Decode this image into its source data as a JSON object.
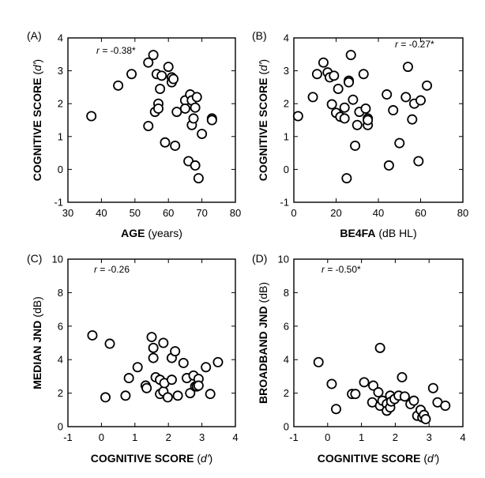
{
  "chart_data": [
    {
      "type": "scatter",
      "panel": "(A)",
      "annotation_r": "r",
      "annotation_value": " = -0.38*",
      "xlabel_bold": "AGE",
      "xlabel_rest": " (years)",
      "ylabel_bold": "COGNITIVE SCORE",
      "ylabel_rest": " (d')",
      "xlim": [
        30,
        80
      ],
      "ylim": [
        -1,
        4
      ],
      "xticks": [
        "30",
        "40",
        "50",
        "60",
        "70",
        "80"
      ],
      "yticks": [
        "-1",
        "0",
        "1",
        "2",
        "3",
        "4"
      ],
      "x": [
        37,
        45,
        49,
        54,
        54,
        55.5,
        56,
        56.5,
        57,
        57,
        57.5,
        58,
        59,
        60,
        61,
        61,
        61.5,
        62,
        62.5,
        65,
        65,
        66,
        66.5,
        67,
        67,
        67.5,
        68,
        68,
        68.5,
        69,
        70,
        73,
        73
      ],
      "y": [
        1.62,
        2.55,
        2.9,
        3.25,
        1.32,
        3.48,
        1.75,
        2.9,
        2.0,
        1.85,
        2.45,
        2.85,
        0.82,
        3.12,
        2.8,
        2.65,
        2.75,
        0.72,
        1.75,
        2.1,
        1.85,
        0.25,
        2.28,
        1.35,
        2.1,
        1.55,
        1.88,
        0.12,
        2.2,
        -0.27,
        1.08,
        1.55,
        1.5
      ]
    },
    {
      "type": "scatter",
      "panel": "(B)",
      "annotation_r": "r",
      "annotation_value": " = -0.27*",
      "xlabel_bold": "BE4FA",
      "xlabel_rest": " (dB HL)",
      "ylabel_bold": "COGNITIVE SCORE",
      "ylabel_rest": " (d')",
      "xlim": [
        0,
        80
      ],
      "ylim": [
        -1,
        4
      ],
      "xticks": [
        "0",
        "20",
        "40",
        "60",
        "80"
      ],
      "yticks": [
        "-1",
        "0",
        "1",
        "2",
        "3",
        "4"
      ],
      "x": [
        2,
        9,
        11,
        14,
        16,
        17,
        18,
        19,
        20,
        21,
        22,
        24,
        24,
        25,
        26,
        26,
        27,
        28,
        29,
        30,
        31,
        33,
        34,
        35,
        35,
        35,
        44,
        45,
        47,
        50,
        53,
        54,
        56,
        57,
        59,
        60,
        63
      ],
      "y": [
        1.62,
        2.2,
        2.9,
        3.25,
        2.95,
        2.8,
        1.98,
        2.85,
        1.72,
        2.45,
        1.6,
        1.88,
        1.55,
        -0.27,
        2.7,
        2.65,
        3.48,
        2.12,
        0.72,
        1.35,
        1.75,
        2.9,
        1.85,
        1.35,
        1.55,
        1.5,
        2.28,
        0.12,
        1.8,
        0.8,
        2.2,
        3.12,
        1.52,
        2.0,
        0.25,
        2.1,
        2.55
      ]
    },
    {
      "type": "scatter",
      "panel": "(C)",
      "annotation_r": "r",
      "annotation_value": " = -0.26",
      "xlabel_bold": "COGNITIVE SCORE",
      "xlabel_rest": " (d')",
      "ylabel_bold": "MEDIAN JND",
      "ylabel_rest": " (dB)",
      "xlim": [
        -1,
        4
      ],
      "ylim": [
        0,
        10
      ],
      "xticks": [
        "-1",
        "0",
        "1",
        "2",
        "3",
        "4"
      ],
      "yticks": [
        "0",
        "2",
        "4",
        "6",
        "8",
        "10"
      ],
      "x": [
        -0.27,
        0.12,
        0.25,
        0.72,
        0.82,
        1.08,
        1.32,
        1.35,
        1.5,
        1.55,
        1.55,
        1.62,
        1.75,
        1.75,
        1.85,
        1.85,
        1.88,
        1.98,
        2.1,
        2.1,
        2.2,
        2.28,
        2.45,
        2.55,
        2.65,
        2.75,
        2.8,
        2.85,
        2.9,
        2.9,
        3.12,
        3.25,
        3.48
      ],
      "y": [
        5.45,
        1.75,
        4.95,
        1.85,
        2.9,
        3.55,
        2.45,
        2.3,
        5.35,
        4.7,
        4.1,
        2.95,
        1.95,
        2.8,
        5.0,
        2.1,
        2.6,
        1.75,
        4.1,
        2.8,
        4.5,
        1.85,
        3.8,
        2.9,
        2.0,
        3.05,
        2.4,
        2.4,
        2.85,
        2.45,
        3.55,
        1.95,
        3.85
      ]
    },
    {
      "type": "scatter",
      "panel": "(D)",
      "annotation_r": "r",
      "annotation_value": " = -0.50*",
      "xlabel_bold": "COGNITIVE SCORE",
      "xlabel_rest": " (d')",
      "ylabel_bold": "BROADBAND JND",
      "ylabel_rest": " (dB)",
      "xlim": [
        -1,
        4
      ],
      "ylim": [
        0,
        10
      ],
      "xticks": [
        "-1",
        "0",
        "1",
        "2",
        "3",
        "4"
      ],
      "yticks": [
        "0",
        "2",
        "4",
        "6",
        "8",
        "10"
      ],
      "x": [
        -0.27,
        0.12,
        0.25,
        0.72,
        0.82,
        1.08,
        1.32,
        1.35,
        1.5,
        1.55,
        1.55,
        1.62,
        1.75,
        1.75,
        1.85,
        1.85,
        1.88,
        1.98,
        2.1,
        2.2,
        2.28,
        2.45,
        2.55,
        2.65,
        2.75,
        2.8,
        2.85,
        2.9,
        3.12,
        3.25,
        3.48
      ],
      "y": [
        3.85,
        2.55,
        1.05,
        1.95,
        1.95,
        2.65,
        1.45,
        2.45,
        2.05,
        4.7,
        1.25,
        1.55,
        1.35,
        0.95,
        1.85,
        1.15,
        1.5,
        1.65,
        1.85,
        2.95,
        1.8,
        1.35,
        1.55,
        0.65,
        1.0,
        0.55,
        0.7,
        0.45,
        2.3,
        1.45,
        1.25
      ]
    }
  ]
}
